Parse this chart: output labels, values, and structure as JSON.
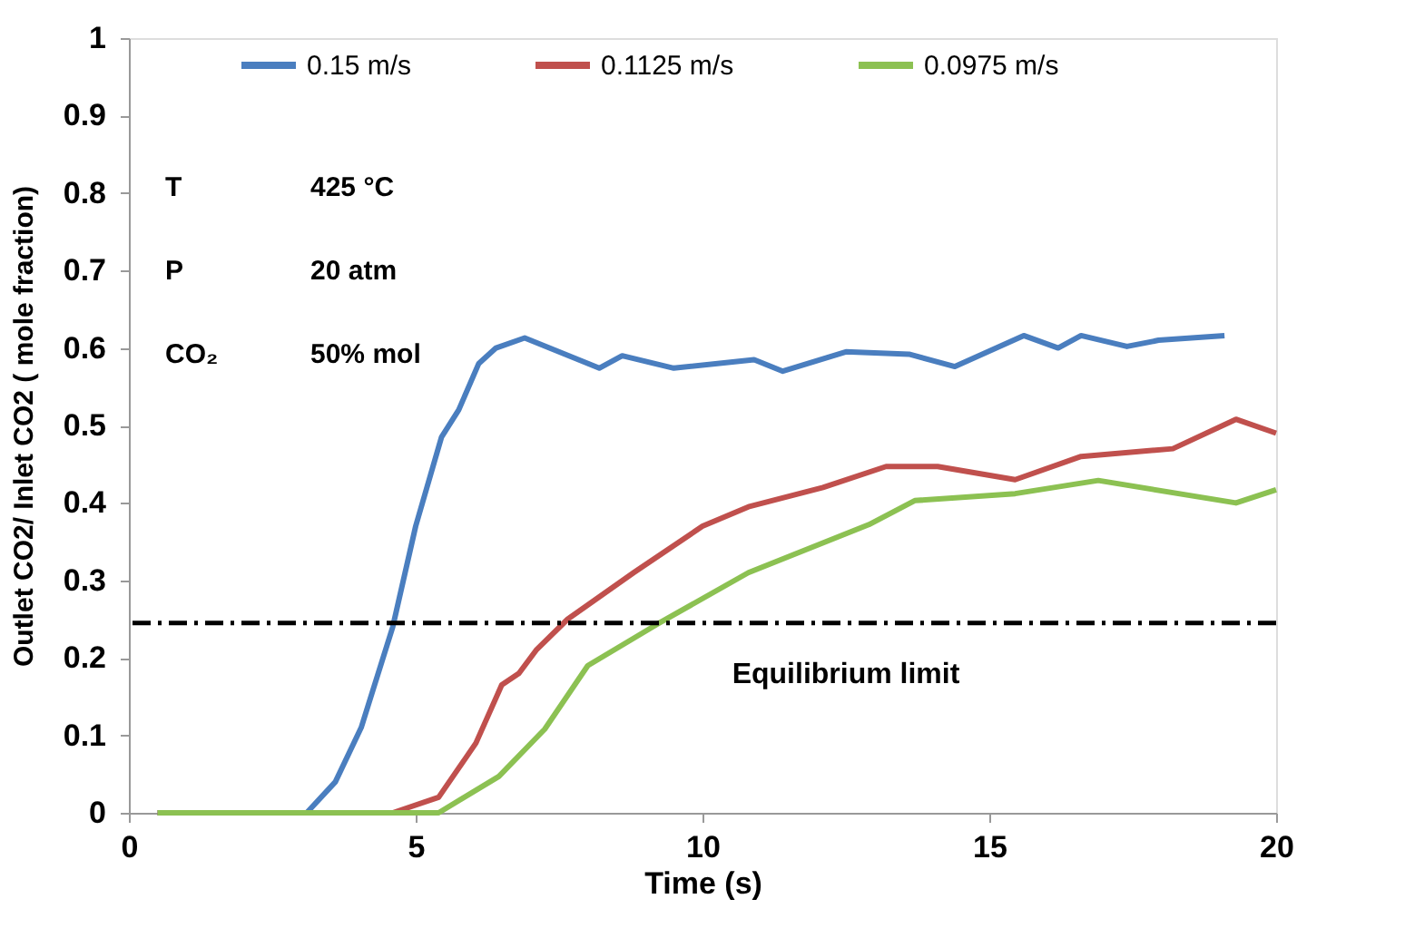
{
  "chart_data": {
    "type": "line",
    "xlabel": "Time (s)",
    "ylabel": "Outlet CO2/ Inlet CO2 ( mole fraction)",
    "xlim": [
      0,
      20
    ],
    "xticks": [
      0,
      5,
      10,
      15,
      20
    ],
    "ylim": [
      0,
      1
    ],
    "yticks": [
      0,
      0.1,
      0.2,
      0.3,
      0.4,
      0.5,
      0.6,
      0.7,
      0.8,
      0.9,
      1
    ],
    "grid": false,
    "legend": "top",
    "marker": "none",
    "line_style": "solid",
    "series": [
      {
        "name": "0.15 m/s",
        "color": "#4a7ebf",
        "x": [
          0.5,
          3.1,
          3.6,
          4.05,
          4.6,
          5.0,
          5.45,
          5.75,
          6.1,
          6.4,
          6.9,
          8.2,
          8.6,
          9.5,
          10.9,
          11.4,
          12.5,
          13.6,
          14.4,
          15.6,
          16.2,
          16.6,
          17.4,
          17.95,
          19.1
        ],
        "values": [
          0,
          0,
          0.04,
          0.11,
          0.24,
          0.37,
          0.485,
          0.52,
          0.58,
          0.6,
          0.613,
          0.574,
          0.59,
          0.574,
          0.585,
          0.57,
          0.595,
          0.592,
          0.576,
          0.616,
          0.6,
          0.616,
          0.602,
          0.61,
          0.616
        ]
      },
      {
        "name": "0.1125 m/s",
        "color": "#c0504d",
        "x": [
          0.5,
          4.6,
          5.4,
          6.05,
          6.5,
          6.8,
          7.1,
          7.65,
          8.8,
          10.0,
          10.8,
          12.1,
          13.2,
          14.1,
          15.45,
          16.6,
          18.2,
          19.3,
          20
        ],
        "values": [
          0,
          0,
          0.02,
          0.09,
          0.165,
          0.18,
          0.21,
          0.25,
          0.31,
          0.37,
          0.395,
          0.42,
          0.447,
          0.447,
          0.43,
          0.46,
          0.47,
          0.508,
          0.49
        ]
      },
      {
        "name": "0.0975 m/s",
        "color": "#8cc152",
        "x": [
          0.5,
          5.4,
          6.45,
          7.25,
          8.0,
          9.2,
          10.8,
          12.9,
          13.7,
          15.45,
          16.9,
          19.3,
          20
        ],
        "values": [
          0,
          0,
          0.047,
          0.108,
          0.19,
          0.243,
          0.31,
          0.372,
          0.403,
          0.412,
          0.429,
          0.4,
          0.417
        ]
      }
    ],
    "ref_lines": [
      {
        "axis": "y",
        "value": 0.245,
        "label": "Equilibrium limit",
        "color": "#000000",
        "line_style": "dashdot"
      }
    ],
    "annotations": [
      "T",
      "425 °C",
      "P",
      "20 atm",
      "CO₂",
      "50% mol"
    ]
  }
}
